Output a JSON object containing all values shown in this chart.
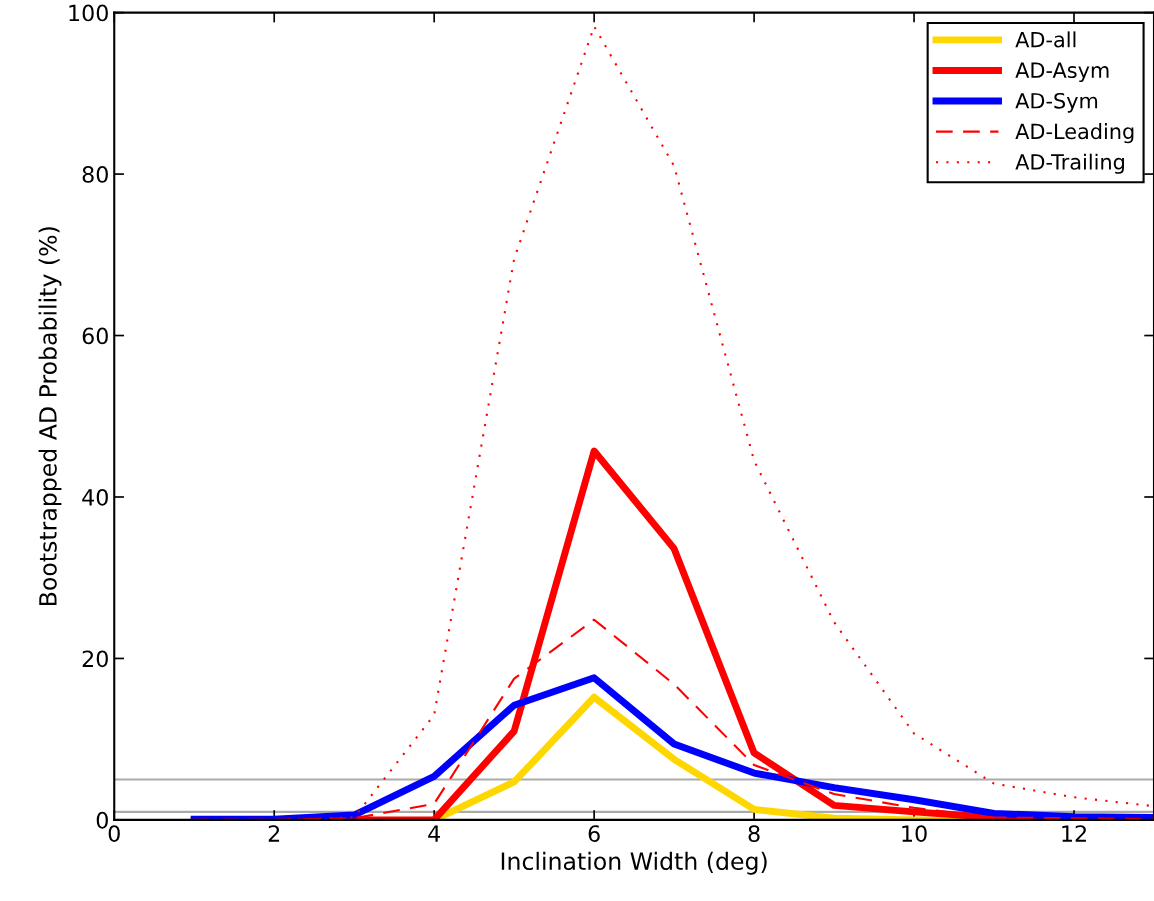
{
  "chart_data": {
    "type": "line",
    "xlabel": "Inclination Width (deg)",
    "ylabel": "Bootstrapped AD Probability (%)",
    "x": [
      1,
      2,
      3,
      4,
      5,
      6,
      7,
      8,
      9,
      10,
      11,
      12,
      13
    ],
    "series": [
      {
        "name": "AD-all",
        "color": "#ffd700",
        "line_style": "solid",
        "values": [
          null,
          null,
          null,
          0,
          4.7,
          15.2,
          7.5,
          1.3,
          0.2,
          0,
          0,
          null,
          null
        ]
      },
      {
        "name": "AD-Asym",
        "color": "#ff0000",
        "line_style": "solid",
        "values": [
          0,
          0,
          0,
          0,
          11,
          45.7,
          33.6,
          8.3,
          1.8,
          1.0,
          0.3,
          0.1,
          0
        ]
      },
      {
        "name": "AD-Sym",
        "color": "#0000ff",
        "line_style": "solid",
        "values": [
          0.1,
          0.1,
          0.6,
          5.4,
          14.2,
          17.6,
          9.4,
          5.8,
          4.0,
          2.5,
          0.8,
          0.4,
          0.3
        ]
      },
      {
        "name": "AD-Leading",
        "color": "#ff0000",
        "line_style": "dashed",
        "values": [
          0,
          0,
          0.2,
          2.0,
          17.5,
          24.8,
          16.8,
          6.8,
          3.2,
          1.5,
          0.3,
          0.2,
          0.1
        ]
      },
      {
        "name": "AD-Trailing",
        "color": "#ff0000",
        "line_style": "dotted",
        "values": [
          0,
          0,
          0.3,
          13,
          69.5,
          98.3,
          81,
          44.5,
          24.5,
          10.7,
          4.5,
          2.8,
          1.7
        ]
      }
    ],
    "xlim": [
      0,
      13
    ],
    "xticks": [
      0,
      2,
      4,
      6,
      8,
      10,
      12
    ],
    "ylim": [
      0,
      100
    ],
    "yticks": [
      0,
      20,
      40,
      60,
      80,
      100
    ],
    "ref_lines": [
      {
        "axis": "y",
        "value": 5,
        "color": "#aaaaaa"
      },
      {
        "axis": "y",
        "value": 1,
        "color": "#aaaaaa"
      }
    ],
    "grid": false,
    "legend": "top right",
    "marker": "none"
  }
}
